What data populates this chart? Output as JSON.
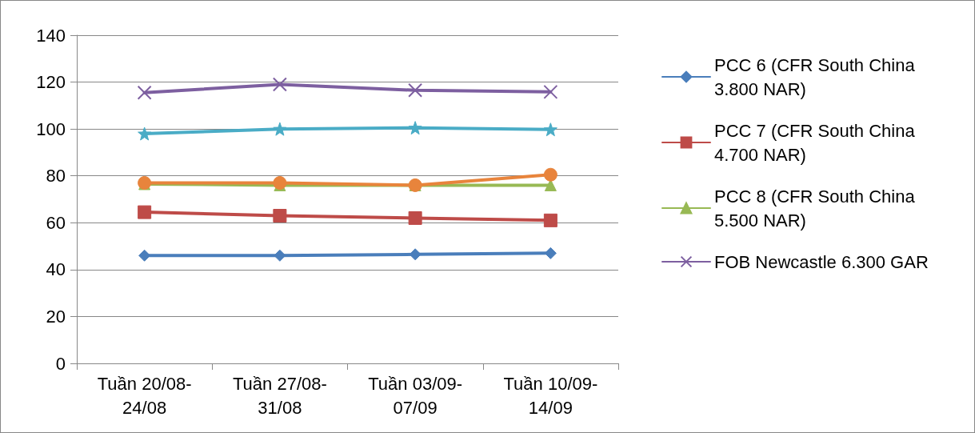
{
  "chart_data": {
    "type": "line",
    "categories": [
      "Tuần 20/08-24/08",
      "Tuần 27/08-31/08",
      "Tuần 03/09-07/09",
      "Tuần 10/09-14/09"
    ],
    "series": [
      {
        "name": "PCC 6 (CFR South China 3.800 NAR)",
        "color": "#4a7ebb",
        "marker": "diamond",
        "values": [
          46,
          46,
          46.5,
          47
        ]
      },
      {
        "name": "PCC 7 (CFR South China 4.700 NAR)",
        "color": "#be4b48",
        "marker": "square",
        "values": [
          64.5,
          63,
          62,
          61
        ]
      },
      {
        "name": "PCC 8 (CFR South China 5.500 NAR)",
        "color": "#98b954",
        "marker": "triangle",
        "values": [
          76.5,
          76,
          76,
          76
        ]
      },
      {
        "name": "FOB Newcastle 6.300 GAR",
        "color": "#7d5fa0",
        "marker": "cross",
        "values": [
          115.5,
          119,
          116.5,
          115.8
        ]
      },
      {
        "color": "#4aacc6",
        "marker": "star",
        "values": [
          98,
          100,
          100.5,
          99.8
        ]
      },
      {
        "color": "#e8843c",
        "marker": "circle",
        "values": [
          77,
          77,
          76,
          80.5
        ]
      }
    ],
    "ylim": [
      0,
      140
    ],
    "yticks": [
      0,
      20,
      40,
      60,
      80,
      100,
      120,
      140
    ],
    "grid": "y",
    "legend": "right",
    "line_style": "solid"
  }
}
